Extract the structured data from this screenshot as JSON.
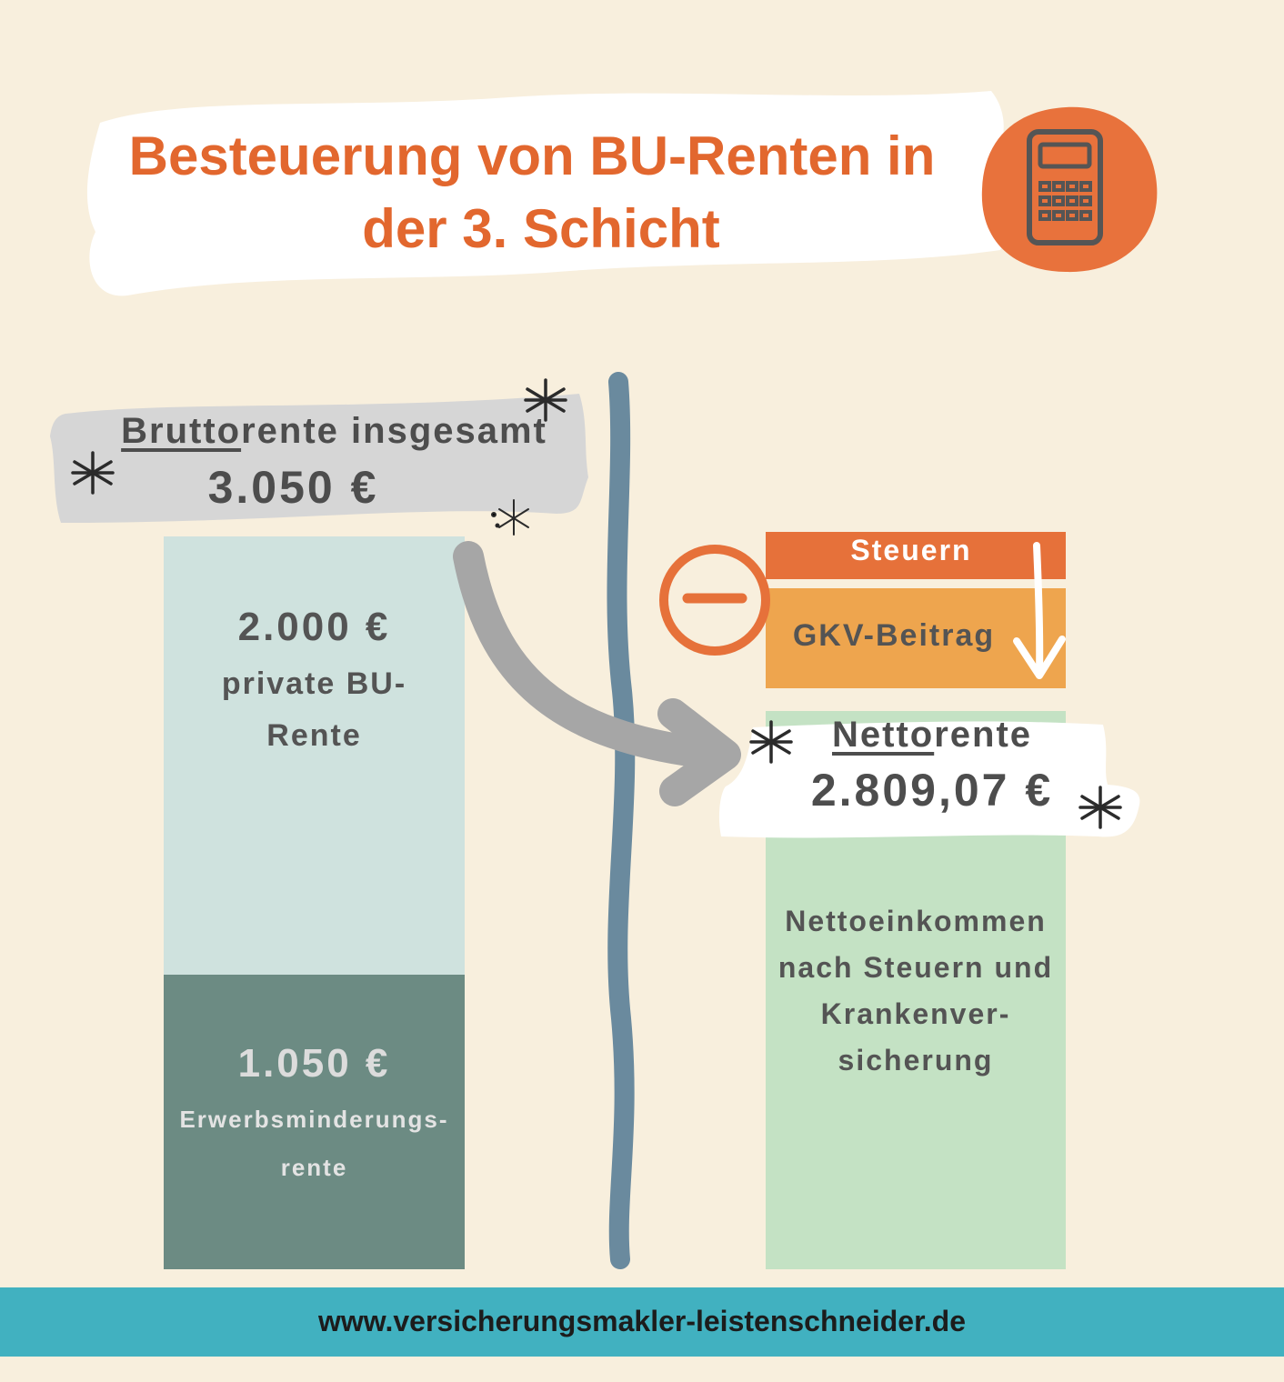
{
  "title": {
    "line1": "Besteuerung von BU-Renten in",
    "line2": "der 3. Schicht"
  },
  "icons": {
    "title_icon": "calculator-icon",
    "minus": "minus-circle-icon",
    "arrow": "curved-arrow-icon",
    "down_arrow": "down-arrow-icon",
    "decoration": "asterisk-icon"
  },
  "brutto": {
    "label_underlined": "Brutto",
    "label_rest": "rente insgesamt",
    "value": "3.050 €"
  },
  "left_bar": {
    "private": {
      "value": "2.000 €",
      "label": "private BU-Rente"
    },
    "em": {
      "value": "1.050 €",
      "label": "Erwerbsminderungs-rente"
    }
  },
  "right_bar": {
    "steuern": "Steuern",
    "gkv": "GKV-Beitrag",
    "netto_label_underlined": "Netto",
    "netto_label_rest": "rente",
    "netto_value": "2.809,07 €",
    "netto_description": "Nettoeinkommen nach Steuern und Krankenver-sicherung"
  },
  "footer": {
    "url": "www.versicherungsmakler-leistenschneider.de"
  },
  "colors": {
    "background": "#f8efdd",
    "accent_orange": "#e2672e",
    "steuern": "#e6713a",
    "gkv": "#eea54e",
    "private_bu": "#cfe2de",
    "erwerbsminderung": "#6c8b83",
    "netto": "#c4e2c4",
    "divider": "#6a8a9e",
    "footer": "#41b1c0"
  }
}
